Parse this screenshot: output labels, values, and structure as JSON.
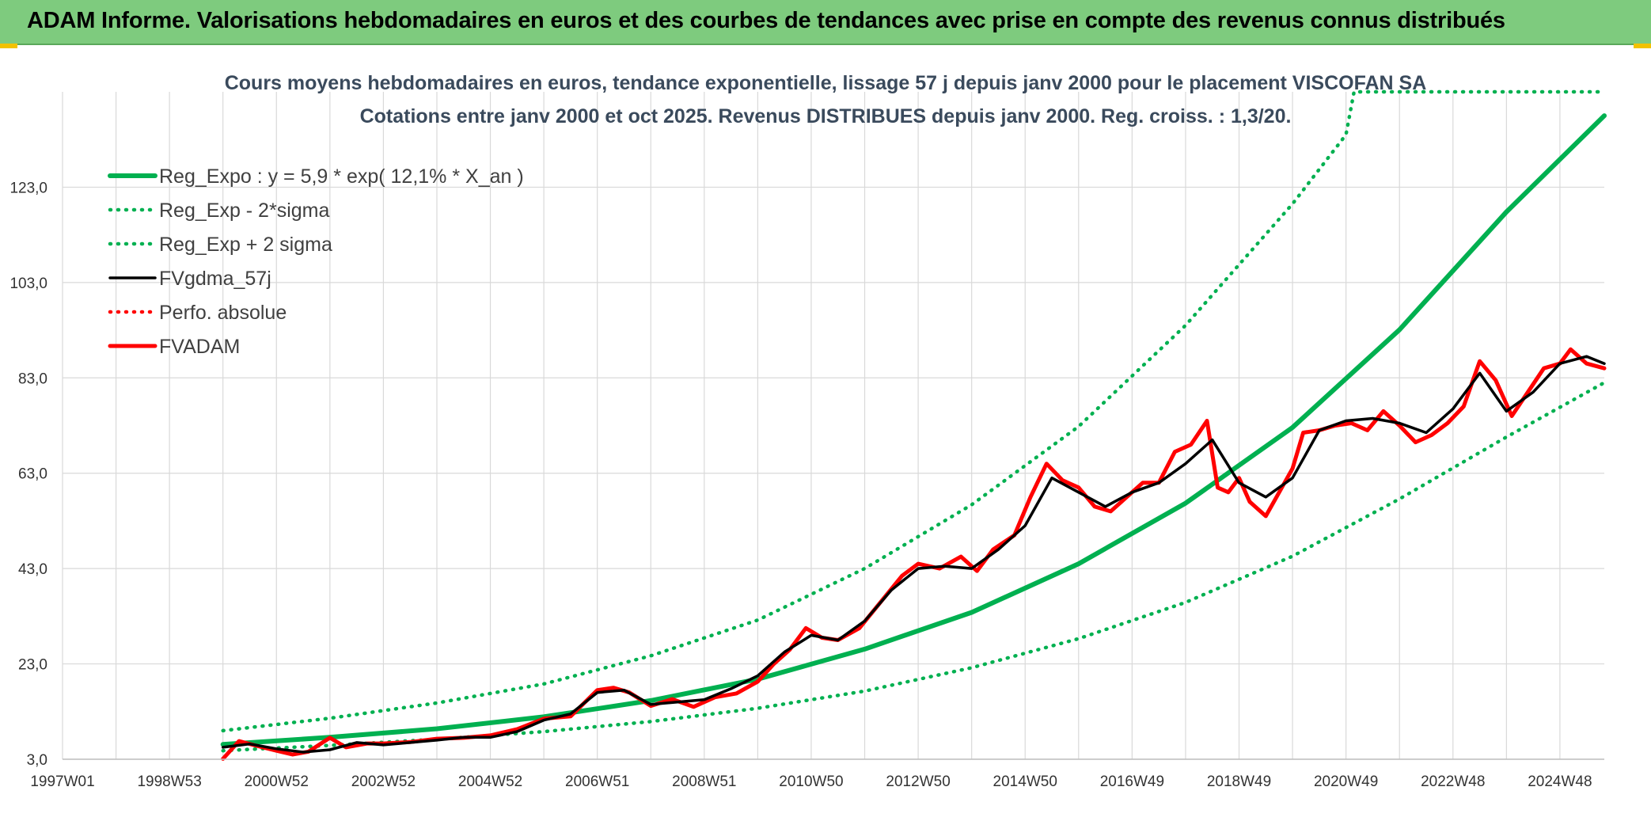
{
  "banner": {
    "title": "ADAM Informe. Valorisations hebdomadaires en euros et des courbes de tendances avec prise en compte des revenus connus distribués"
  },
  "colors": {
    "banner_bg": "#7ecb7e",
    "reg_green": "#00b050",
    "fvgdma_black": "#000000",
    "fvadam_red": "#ff0000",
    "grid": "#d9d9d9"
  },
  "chart_data": {
    "type": "line",
    "title": "Cours moyens hebdomadaires en euros, tendance exponentielle, lissage 57 j depuis janv 2000 pour le placement VISCOFAN SA",
    "subtitle": "Cotations entre janv 2000 et oct 2025. Revenus DISTRIBUES depuis janv 2000. Reg. croiss. : 1,3/20.",
    "xlabel": "",
    "ylabel": "",
    "xlim": [
      1997.0,
      2025.83
    ],
    "ylim": [
      3.0,
      143.0
    ],
    "y_ticks": [
      3.0,
      23.0,
      43.0,
      63.0,
      83.0,
      103.0,
      123.0
    ],
    "y_tick_labels": [
      "3,0",
      "23,0",
      "43,0",
      "63,0",
      "83,0",
      "103,0",
      "123,0"
    ],
    "x_ticks": [
      1997.0,
      1999.0,
      2001.0,
      2003.0,
      2005.0,
      2007.0,
      2009.0,
      2011.0,
      2013.0,
      2015.0,
      2017.0,
      2019.0,
      2021.0,
      2023.0,
      2025.0
    ],
    "x_tick_labels": [
      "1997W01",
      "1998W53",
      "2000W52",
      "2002W52",
      "2004W52",
      "2006W51",
      "2008W51",
      "2010W50",
      "2012W50",
      "2014W50",
      "2016W49",
      "2018W49",
      "2020W49",
      "2022W48",
      "2024W48"
    ],
    "grid": true,
    "legend_position": "top-left",
    "series": [
      {
        "name": "Reg_Expo : y = 5,9 * exp( 12,1% *  X_an )",
        "style": "solid-thick",
        "color": "#00b050",
        "x": [
          2000.0,
          2002.0,
          2004.0,
          2006.0,
          2008.0,
          2010.0,
          2012.0,
          2014.0,
          2016.0,
          2018.0,
          2020.0,
          2022.0,
          2024.0,
          2025.83
        ],
        "values": [
          6.1,
          7.6,
          9.4,
          11.9,
          15.3,
          19.8,
          26.1,
          33.8,
          44.0,
          56.7,
          72.6,
          93.1,
          117.8,
          138.0
        ]
      },
      {
        "name": "Reg_Exp - 2*sigma",
        "style": "dotted",
        "color": "#00b050",
        "x": [
          2000.0,
          2002.0,
          2004.0,
          2006.0,
          2008.0,
          2010.0,
          2012.0,
          2014.0,
          2016.0,
          2018.0,
          2020.0,
          2022.0,
          2024.0,
          2025.83
        ],
        "values": [
          4.8,
          5.9,
          7.2,
          8.8,
          10.9,
          13.7,
          17.3,
          22.2,
          28.3,
          35.9,
          45.6,
          57.6,
          70.6,
          82.0
        ]
      },
      {
        "name": "Reg_Exp + 2 sigma",
        "style": "dotted",
        "color": "#00b050",
        "x": [
          2000.0,
          2002.0,
          2004.0,
          2006.0,
          2008.0,
          2010.0,
          2012.0,
          2014.0,
          2016.0,
          2018.0,
          2020.0,
          2021.0,
          2021.15,
          2025.83
        ],
        "values": [
          9.0,
          11.6,
          14.8,
          18.8,
          24.7,
          32.2,
          43.0,
          56.4,
          72.8,
          94.0,
          119.5,
          134.0,
          143.0,
          143.0
        ]
      },
      {
        "name": "FVgdma_57j",
        "style": "solid",
        "color": "#000000",
        "x": [
          2000.0,
          2000.5,
          2001.0,
          2001.5,
          2002.0,
          2002.5,
          2003.0,
          2003.5,
          2004.0,
          2004.5,
          2005.0,
          2005.5,
          2006.0,
          2006.5,
          2007.0,
          2007.5,
          2008.0,
          2008.5,
          2009.0,
          2009.5,
          2010.0,
          2010.5,
          2011.0,
          2011.5,
          2012.0,
          2012.5,
          2013.0,
          2013.5,
          2014.0,
          2014.5,
          2015.0,
          2015.5,
          2016.0,
          2016.5,
          2017.0,
          2017.5,
          2018.0,
          2018.5,
          2019.0,
          2019.5,
          2020.0,
          2020.5,
          2021.0,
          2021.5,
          2022.0,
          2022.5,
          2023.0,
          2023.5,
          2024.0,
          2024.5,
          2025.0,
          2025.5,
          2025.83
        ],
        "values": [
          5.5,
          6.2,
          5.2,
          4.5,
          5.0,
          6.5,
          6.0,
          6.5,
          7.0,
          7.6,
          7.6,
          8.8,
          11.2,
          12.5,
          17.0,
          17.5,
          14.5,
          15.0,
          15.5,
          17.8,
          20.5,
          25.5,
          29.0,
          28.0,
          32.0,
          38.5,
          43.0,
          43.5,
          43.0,
          47.0,
          52.0,
          62.0,
          59.0,
          56.0,
          59.0,
          61.0,
          65.0,
          70.0,
          61.0,
          58.0,
          62.0,
          72.0,
          74.0,
          74.5,
          73.5,
          71.5,
          76.5,
          84.0,
          76.0,
          80.0,
          86.0,
          87.5,
          86.0
        ]
      },
      {
        "name": "Perfo. absolue",
        "style": "dotted",
        "color": "#ff0000",
        "x": [],
        "values": []
      },
      {
        "name": "FVADAM",
        "style": "solid-thick",
        "color": "#ff0000",
        "x": [
          2000.0,
          2000.3,
          2000.6,
          2001.0,
          2001.3,
          2001.6,
          2002.0,
          2002.3,
          2002.7,
          2003.0,
          2003.5,
          2004.0,
          2004.5,
          2005.0,
          2005.5,
          2006.0,
          2006.5,
          2007.0,
          2007.3,
          2007.6,
          2008.0,
          2008.4,
          2008.8,
          2009.2,
          2009.6,
          2010.0,
          2010.3,
          2010.6,
          2010.9,
          2011.2,
          2011.5,
          2011.9,
          2012.3,
          2012.7,
          2013.0,
          2013.4,
          2013.8,
          2014.1,
          2014.4,
          2014.8,
          2015.1,
          2015.4,
          2015.7,
          2016.0,
          2016.3,
          2016.6,
          2016.9,
          2017.2,
          2017.5,
          2017.8,
          2018.1,
          2018.4,
          2018.6,
          2018.8,
          2019.0,
          2019.2,
          2019.5,
          2019.8,
          2020.0,
          2020.2,
          2020.5,
          2020.8,
          2021.1,
          2021.4,
          2021.7,
          2022.0,
          2022.3,
          2022.6,
          2022.9,
          2023.2,
          2023.5,
          2023.8,
          2024.1,
          2024.4,
          2024.7,
          2025.0,
          2025.2,
          2025.5,
          2025.83
        ],
        "values": [
          3.1,
          6.8,
          5.9,
          4.8,
          4.0,
          4.6,
          7.5,
          5.5,
          6.3,
          6.3,
          6.6,
          7.3,
          7.5,
          8.0,
          9.3,
          11.5,
          12.0,
          17.5,
          18.0,
          17.0,
          14.2,
          15.6,
          14.0,
          16.0,
          16.8,
          19.3,
          23.0,
          26.0,
          30.5,
          28.5,
          28.0,
          30.5,
          36.0,
          41.5,
          44.0,
          43.0,
          45.5,
          42.5,
          47.0,
          50.0,
          58.0,
          65.0,
          61.5,
          60.0,
          56.0,
          55.0,
          58.0,
          61.0,
          61.0,
          67.5,
          69.0,
          74.0,
          60.0,
          59.0,
          62.0,
          57.0,
          54.0,
          60.0,
          64.0,
          71.5,
          72.0,
          73.0,
          73.5,
          72.0,
          76.0,
          73.0,
          69.5,
          71.0,
          73.5,
          77.0,
          86.5,
          82.5,
          75.0,
          80.0,
          85.0,
          86.0,
          89.0,
          86.0,
          85.0
        ]
      }
    ]
  }
}
